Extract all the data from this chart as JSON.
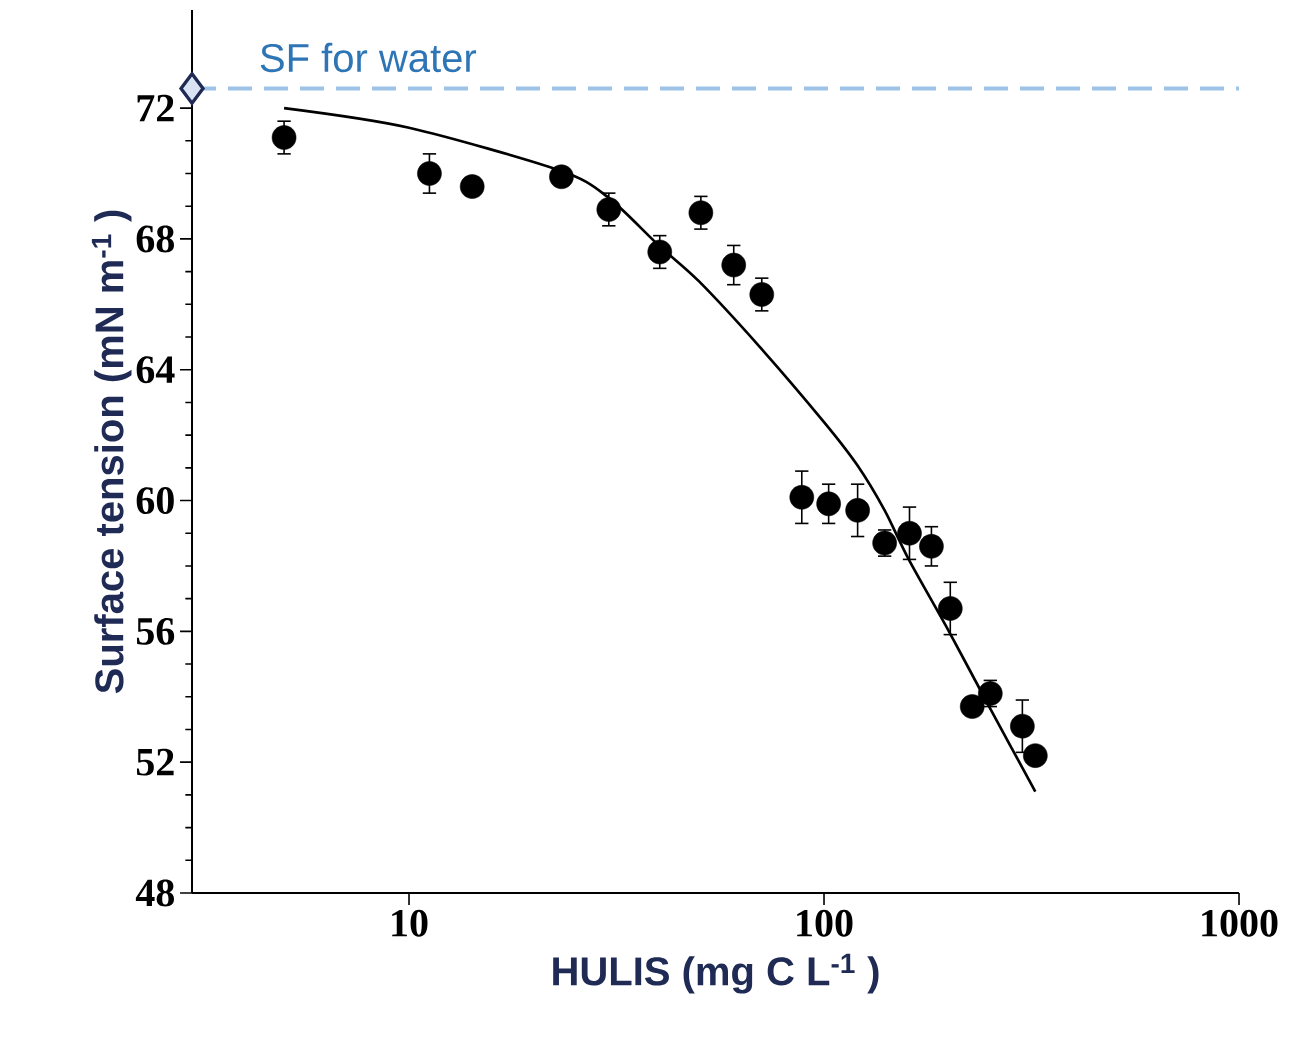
{
  "chart_data": {
    "type": "scatter",
    "xlabel": "HULIS (mg C L$^{-1}$ )",
    "ylabel": "Surface tension (mN m$^{-1}$ )",
    "log": "x",
    "xlim": [
      3,
      1000
    ],
    "ylim": [
      48,
      75
    ],
    "xticks": [
      10,
      100,
      1000
    ],
    "yticks": [
      48,
      52,
      56,
      60,
      64,
      68,
      72
    ],
    "grid": false,
    "series": [
      {
        "color": "#000000",
        "marker": "circle",
        "x": [
          5,
          11.2,
          14.2,
          23.3,
          30.3,
          40.2,
          50.5,
          60.6,
          70.8,
          88.4,
          102.6,
          120.5,
          140,
          160.7,
          181.5,
          201.5,
          227.6,
          251.6,
          300.6,
          323
        ],
        "values": [
          71.1,
          70.0,
          69.6,
          69.9,
          68.9,
          67.6,
          68.8,
          67.2,
          66.3,
          60.1,
          59.9,
          59.7,
          58.7,
          59.0,
          58.6,
          56.7,
          53.7,
          54.1,
          53.1,
          52.2
        ],
        "errors": [
          0.5,
          0.6,
          null,
          null,
          0.5,
          0.5,
          0.5,
          0.6,
          0.5,
          0.8,
          0.6,
          0.8,
          0.4,
          0.8,
          0.6,
          0.8,
          null,
          0.4,
          0.8,
          null
        ]
      },
      {
        "type": "line",
        "color": "#000000",
        "marker": "none",
        "line_style": "solid",
        "x": [
          5,
          10,
          23,
          30,
          40,
          50,
          70,
          100,
          120,
          140,
          160,
          200,
          250,
          323
        ],
        "values": [
          72.0,
          71.4,
          70.1,
          69.3,
          67.8,
          66.7,
          64.7,
          62.4,
          61.1,
          59.7,
          58.2,
          56.0,
          53.7,
          51.1
        ]
      },
      {
        "type": "scatter",
        "color": "#dae3f3",
        "marker": "diamond",
        "x": [
          3
        ],
        "values": [
          72.6
        ]
      }
    ],
    "ref_lines": [
      {
        "axis": "y",
        "value": 72.6,
        "label": "SF for water",
        "color": "#9dc3e6",
        "line_style": "dashed"
      }
    ]
  }
}
